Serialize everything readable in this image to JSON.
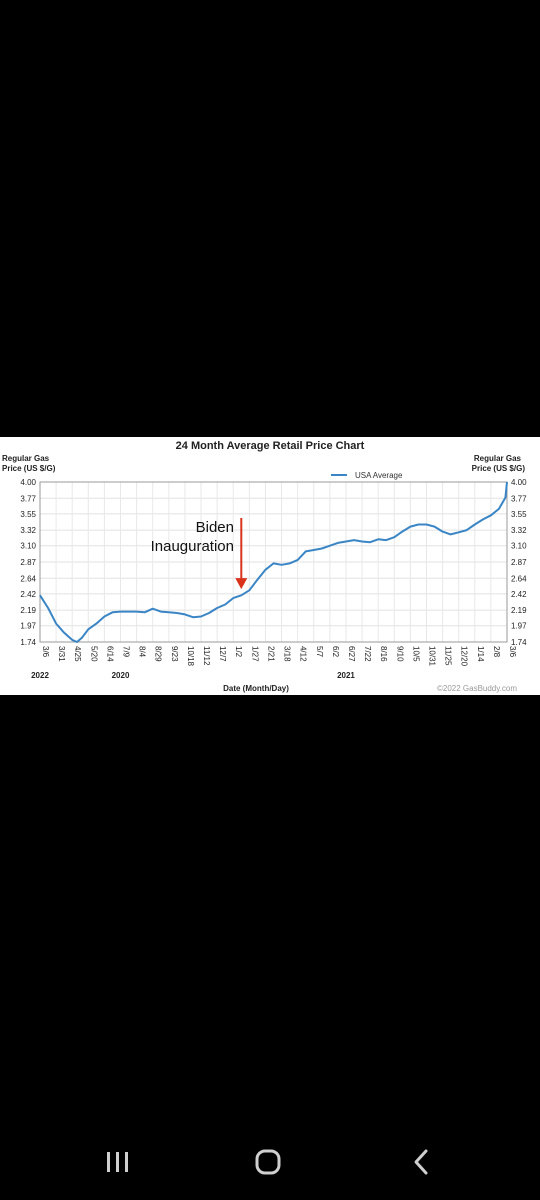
{
  "chart_data": {
    "type": "line",
    "title": "24 Month Average Retail Price Chart",
    "ylabel_left": [
      "Regular Gas",
      "Price (US $/G)"
    ],
    "ylabel_right": [
      "Regular Gas",
      "Price (US $/G)"
    ],
    "xlabel": "Date (Month/Day)",
    "credit": "©2022 GasBuddy.com",
    "ylim": [
      1.74,
      4.0
    ],
    "y_ticks": [
      "4.00",
      "3.77",
      "3.55",
      "3.32",
      "3.10",
      "2.87",
      "2.64",
      "2.42",
      "2.19",
      "1.97",
      "1.74"
    ],
    "x_ticks": [
      "3/6",
      "3/31",
      "4/25",
      "5/20",
      "6/14",
      "7/9",
      "8/4",
      "8/29",
      "9/23",
      "10/18",
      "11/12",
      "12/7",
      "1/2",
      "1/27",
      "2/21",
      "3/18",
      "4/12",
      "5/7",
      "6/2",
      "6/27",
      "7/22",
      "8/16",
      "9/10",
      "10/5",
      "10/31",
      "11/25",
      "12/20",
      "1/14",
      "2/8",
      "3/6"
    ],
    "year_labels": [
      {
        "label": "2020",
        "tick": "7/9"
      },
      {
        "label": "2021",
        "tick": "6/27"
      },
      {
        "label": "2022",
        "tick": "3/6"
      }
    ],
    "legend": {
      "entries": [
        "USA Average"
      ],
      "position": "top-right"
    },
    "grid": true,
    "series": [
      {
        "name": "USA Average",
        "color": "#3a85c5",
        "x_tick_index": [
          0,
          0.5,
          1,
          1.5,
          2,
          2.3,
          2.6,
          3,
          3.5,
          4,
          4.5,
          5,
          5.5,
          6,
          6.5,
          7,
          7.5,
          8,
          8.5,
          9,
          9.5,
          10,
          10.5,
          11,
          11.5,
          12,
          12.5,
          13,
          13.5,
          14,
          14.5,
          15,
          15.5,
          16,
          16.5,
          17,
          17.5,
          18,
          18.5,
          19,
          19.5,
          20,
          20.5,
          21,
          21.5,
          22,
          22.5,
          23,
          23.5,
          24,
          24.5,
          25,
          25.5,
          26,
          26.5,
          27,
          27.5,
          28,
          28.5,
          28.9,
          29
        ],
        "values": [
          2.4,
          2.22,
          2.0,
          1.87,
          1.77,
          1.74,
          1.8,
          1.92,
          2.0,
          2.1,
          2.16,
          2.17,
          2.17,
          2.17,
          2.16,
          2.21,
          2.17,
          2.16,
          2.15,
          2.13,
          2.09,
          2.1,
          2.15,
          2.22,
          2.27,
          2.36,
          2.4,
          2.47,
          2.62,
          2.76,
          2.85,
          2.83,
          2.85,
          2.9,
          3.02,
          3.04,
          3.06,
          3.1,
          3.14,
          3.16,
          3.18,
          3.16,
          3.15,
          3.19,
          3.18,
          3.22,
          3.3,
          3.37,
          3.4,
          3.4,
          3.37,
          3.3,
          3.26,
          3.29,
          3.32,
          3.4,
          3.47,
          3.53,
          3.62,
          3.78,
          4.0
        ]
      }
    ],
    "annotations": [
      {
        "text_lines": [
          "Biden",
          "Inauguration"
        ],
        "arrow_tick_index": 12.5,
        "arrow_value": 2.43,
        "arrow_color": "#d9331c"
      }
    ]
  },
  "nav": {
    "recents_icon": "recent-apps-icon",
    "home_icon": "home-icon",
    "back_icon": "back-icon"
  }
}
